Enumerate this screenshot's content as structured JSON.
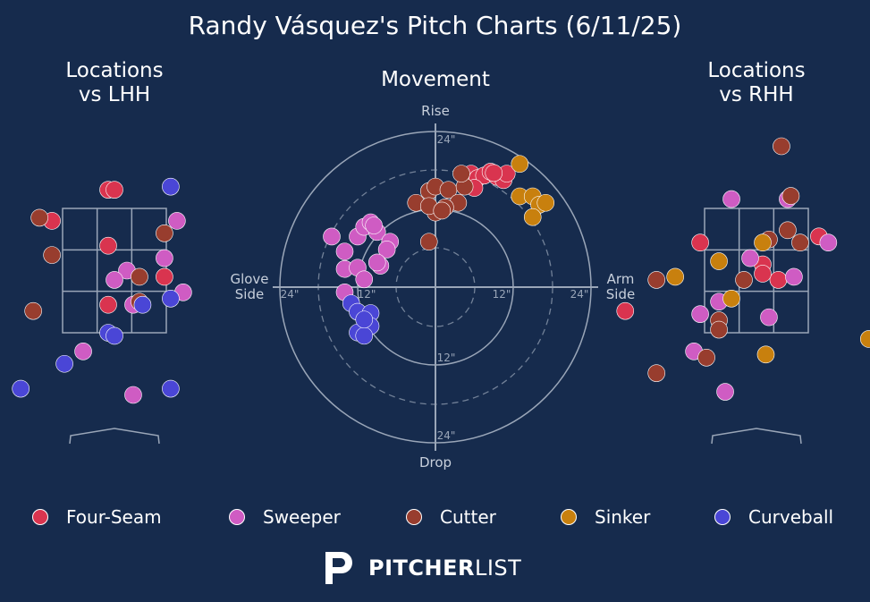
{
  "title": "Randy Vásquez's Pitch Charts (6/11/25)",
  "brand": {
    "name_bold": "PITCHER",
    "name_light": "LIST"
  },
  "colors": {
    "background": "#162b4d",
    "grid": "#9aa6b8",
    "text": "#ffffff",
    "axis_text": "#c8d0dc"
  },
  "pitch_types": [
    {
      "name": "Four-Seam",
      "color": "#d9344f"
    },
    {
      "name": "Sweeper",
      "color": "#cf5cc3"
    },
    {
      "name": "Cutter",
      "color": "#983d2e"
    },
    {
      "name": "Sinker",
      "color": "#c8800e"
    },
    {
      "name": "Curveball",
      "color": "#4a46d6"
    }
  ],
  "chart_data": [
    {
      "type": "scatter",
      "title": "Locations vs LHH",
      "xlabel": "",
      "ylabel": "",
      "points": [
        {
          "pitch": "Four-Seam",
          "x": -0.1,
          "y": 3.8
        },
        {
          "pitch": "Four-Seam",
          "x": 0.0,
          "y": 3.8
        },
        {
          "pitch": "Four-Seam",
          "x": -1.0,
          "y": 3.3
        },
        {
          "pitch": "Four-Seam",
          "x": -0.1,
          "y": 2.9
        },
        {
          "pitch": "Four-Seam",
          "x": 0.8,
          "y": 2.4
        },
        {
          "pitch": "Four-Seam",
          "x": -0.1,
          "y": 1.95
        },
        {
          "pitch": "Sweeper",
          "x": 0.2,
          "y": 2.5
        },
        {
          "pitch": "Sweeper",
          "x": 0.0,
          "y": 2.35
        },
        {
          "pitch": "Sweeper",
          "x": 1.0,
          "y": 3.3
        },
        {
          "pitch": "Sweeper",
          "x": 0.8,
          "y": 2.7
        },
        {
          "pitch": "Sweeper",
          "x": 1.1,
          "y": 2.15
        },
        {
          "pitch": "Sweeper",
          "x": 0.3,
          "y": 1.95
        },
        {
          "pitch": "Sweeper",
          "x": -0.5,
          "y": 1.2
        },
        {
          "pitch": "Sweeper",
          "x": 0.3,
          "y": 0.5
        },
        {
          "pitch": "Cutter",
          "x": -1.2,
          "y": 3.35
        },
        {
          "pitch": "Cutter",
          "x": 0.8,
          "y": 3.1
        },
        {
          "pitch": "Cutter",
          "x": -1.0,
          "y": 2.75
        },
        {
          "pitch": "Cutter",
          "x": 0.4,
          "y": 2.4
        },
        {
          "pitch": "Cutter",
          "x": 0.4,
          "y": 2.0
        },
        {
          "pitch": "Cutter",
          "x": -2.1,
          "y": 2.2
        },
        {
          "pitch": "Cutter",
          "x": -1.3,
          "y": 1.85
        },
        {
          "pitch": "Curveball",
          "x": 0.9,
          "y": 3.85
        },
        {
          "pitch": "Curveball",
          "x": 0.45,
          "y": 1.95
        },
        {
          "pitch": "Curveball",
          "x": 0.9,
          "y": 2.05
        },
        {
          "pitch": "Curveball",
          "x": -0.1,
          "y": 1.5
        },
        {
          "pitch": "Curveball",
          "x": 0.0,
          "y": 1.45
        },
        {
          "pitch": "Curveball",
          "x": -0.8,
          "y": 1.0
        },
        {
          "pitch": "Curveball",
          "x": -1.5,
          "y": 0.6
        },
        {
          "pitch": "Curveball",
          "x": 0.9,
          "y": 0.6
        }
      ]
    },
    {
      "type": "scatter",
      "title": "Movement",
      "axis_labels": {
        "top": "Rise",
        "bottom": "Drop",
        "left": "Glove\nSide",
        "right": "Arm\nSide"
      },
      "ring_labels": [
        "12\"",
        "24\""
      ],
      "xlim": [
        -24,
        24
      ],
      "ylim": [
        -24,
        24
      ],
      "points": [
        {
          "pitch": "Four-Seam",
          "x": 5.5,
          "y": 17.5
        },
        {
          "pitch": "Four-Seam",
          "x": 6.5,
          "y": 16.8
        },
        {
          "pitch": "Four-Seam",
          "x": 7.5,
          "y": 17.2
        },
        {
          "pitch": "Four-Seam",
          "x": 8.5,
          "y": 17.8
        },
        {
          "pitch": "Four-Seam",
          "x": 9.5,
          "y": 17.0
        },
        {
          "pitch": "Four-Seam",
          "x": 10.5,
          "y": 16.5
        },
        {
          "pitch": "Four-Seam",
          "x": 11.0,
          "y": 17.5
        },
        {
          "pitch": "Four-Seam",
          "x": 6.0,
          "y": 15.3
        },
        {
          "pitch": "Four-Seam",
          "x": 9.0,
          "y": 17.6
        },
        {
          "pitch": "Sweeper",
          "x": -16.0,
          "y": 7.8
        },
        {
          "pitch": "Sweeper",
          "x": -14.0,
          "y": 5.5
        },
        {
          "pitch": "Sweeper",
          "x": -12.0,
          "y": 7.8
        },
        {
          "pitch": "Sweeper",
          "x": -11.0,
          "y": 9.3
        },
        {
          "pitch": "Sweeper",
          "x": -10.0,
          "y": 10.0
        },
        {
          "pitch": "Sweeper",
          "x": -9.0,
          "y": 8.5
        },
        {
          "pitch": "Sweeper",
          "x": -7.0,
          "y": 7.0
        },
        {
          "pitch": "Sweeper",
          "x": -7.5,
          "y": 5.8
        },
        {
          "pitch": "Sweeper",
          "x": -14.0,
          "y": 2.8
        },
        {
          "pitch": "Sweeper",
          "x": -12.0,
          "y": 3.0
        },
        {
          "pitch": "Sweeper",
          "x": -11.0,
          "y": 1.2
        },
        {
          "pitch": "Sweeper",
          "x": -8.5,
          "y": 3.3
        },
        {
          "pitch": "Sweeper",
          "x": -14.0,
          "y": -0.8
        },
        {
          "pitch": "Sweeper",
          "x": -9.0,
          "y": 3.8
        },
        {
          "pitch": "Sweeper",
          "x": -9.5,
          "y": 9.5
        },
        {
          "pitch": "Cutter",
          "x": -3.0,
          "y": 13.0
        },
        {
          "pitch": "Cutter",
          "x": -1.0,
          "y": 14.8
        },
        {
          "pitch": "Cutter",
          "x": 0.0,
          "y": 15.5
        },
        {
          "pitch": "Cutter",
          "x": 2.0,
          "y": 15.0
        },
        {
          "pitch": "Cutter",
          "x": 4.5,
          "y": 15.5
        },
        {
          "pitch": "Cutter",
          "x": 3.5,
          "y": 13.0
        },
        {
          "pitch": "Cutter",
          "x": 1.5,
          "y": 12.3
        },
        {
          "pitch": "Cutter",
          "x": 0.0,
          "y": 11.5
        },
        {
          "pitch": "Cutter",
          "x": -1.0,
          "y": 12.5
        },
        {
          "pitch": "Cutter",
          "x": 1.0,
          "y": 11.8
        },
        {
          "pitch": "Cutter",
          "x": -1.0,
          "y": 7.0
        },
        {
          "pitch": "Cutter",
          "x": 4.0,
          "y": 17.5
        },
        {
          "pitch": "Sinker",
          "x": 13.0,
          "y": 19.0
        },
        {
          "pitch": "Sinker",
          "x": 13.0,
          "y": 14.0
        },
        {
          "pitch": "Sinker",
          "x": 15.0,
          "y": 14.0
        },
        {
          "pitch": "Sinker",
          "x": 16.0,
          "y": 12.7
        },
        {
          "pitch": "Sinker",
          "x": 17.0,
          "y": 13.0
        },
        {
          "pitch": "Sinker",
          "x": 15.0,
          "y": 10.8
        },
        {
          "pitch": "Curveball",
          "x": -13.0,
          "y": -2.5
        },
        {
          "pitch": "Curveball",
          "x": -12.0,
          "y": -3.8
        },
        {
          "pitch": "Curveball",
          "x": -10.0,
          "y": -4.0
        },
        {
          "pitch": "Curveball",
          "x": -10.0,
          "y": -6.0
        },
        {
          "pitch": "Curveball",
          "x": -12.0,
          "y": -7.0
        },
        {
          "pitch": "Curveball",
          "x": -11.0,
          "y": -7.5
        },
        {
          "pitch": "Curveball",
          "x": -11.0,
          "y": -5.0
        }
      ]
    },
    {
      "type": "scatter",
      "title": "Locations vs RHH",
      "xlabel": "",
      "ylabel": "",
      "points": [
        {
          "pitch": "Four-Seam",
          "x": -0.9,
          "y": 2.95
        },
        {
          "pitch": "Four-Seam",
          "x": 0.1,
          "y": 2.6
        },
        {
          "pitch": "Four-Seam",
          "x": 0.35,
          "y": 2.35
        },
        {
          "pitch": "Four-Seam",
          "x": 0.1,
          "y": 2.45
        },
        {
          "pitch": "Four-Seam",
          "x": 1.0,
          "y": 3.05
        },
        {
          "pitch": "Four-Seam",
          "x": -2.1,
          "y": 1.85
        },
        {
          "pitch": "Sweeper",
          "x": -0.4,
          "y": 3.65
        },
        {
          "pitch": "Sweeper",
          "x": 0.5,
          "y": 3.65
        },
        {
          "pitch": "Sweeper",
          "x": 1.15,
          "y": 2.95
        },
        {
          "pitch": "Sweeper",
          "x": -0.1,
          "y": 2.7
        },
        {
          "pitch": "Sweeper",
          "x": 0.6,
          "y": 2.4
        },
        {
          "pitch": "Sweeper",
          "x": -0.6,
          "y": 2.0
        },
        {
          "pitch": "Sweeper",
          "x": -0.9,
          "y": 1.8
        },
        {
          "pitch": "Sweeper",
          "x": 0.2,
          "y": 1.75
        },
        {
          "pitch": "Sweeper",
          "x": -1.0,
          "y": 1.2
        },
        {
          "pitch": "Sweeper",
          "x": -0.5,
          "y": 0.55
        },
        {
          "pitch": "Cutter",
          "x": 0.4,
          "y": 4.5
        },
        {
          "pitch": "Cutter",
          "x": 0.55,
          "y": 3.7
        },
        {
          "pitch": "Cutter",
          "x": 0.5,
          "y": 3.15
        },
        {
          "pitch": "Cutter",
          "x": 0.2,
          "y": 3.0
        },
        {
          "pitch": "Cutter",
          "x": 0.7,
          "y": 2.95
        },
        {
          "pitch": "Cutter",
          "x": -1.6,
          "y": 2.35
        },
        {
          "pitch": "Cutter",
          "x": -0.2,
          "y": 2.35
        },
        {
          "pitch": "Cutter",
          "x": -0.6,
          "y": 1.7
        },
        {
          "pitch": "Cutter",
          "x": -0.6,
          "y": 1.55
        },
        {
          "pitch": "Cutter",
          "x": -0.8,
          "y": 1.1
        },
        {
          "pitch": "Cutter",
          "x": -1.6,
          "y": 0.85
        },
        {
          "pitch": "Sinker",
          "x": 2.1,
          "y": 4.05
        },
        {
          "pitch": "Sinker",
          "x": 0.1,
          "y": 2.95
        },
        {
          "pitch": "Sinker",
          "x": -0.6,
          "y": 2.65
        },
        {
          "pitch": "Sinker",
          "x": -1.3,
          "y": 2.4
        },
        {
          "pitch": "Sinker",
          "x": -0.4,
          "y": 2.05
        },
        {
          "pitch": "Sinker",
          "x": 1.8,
          "y": 1.4
        },
        {
          "pitch": "Sinker",
          "x": 0.15,
          "y": 1.15
        }
      ]
    }
  ]
}
